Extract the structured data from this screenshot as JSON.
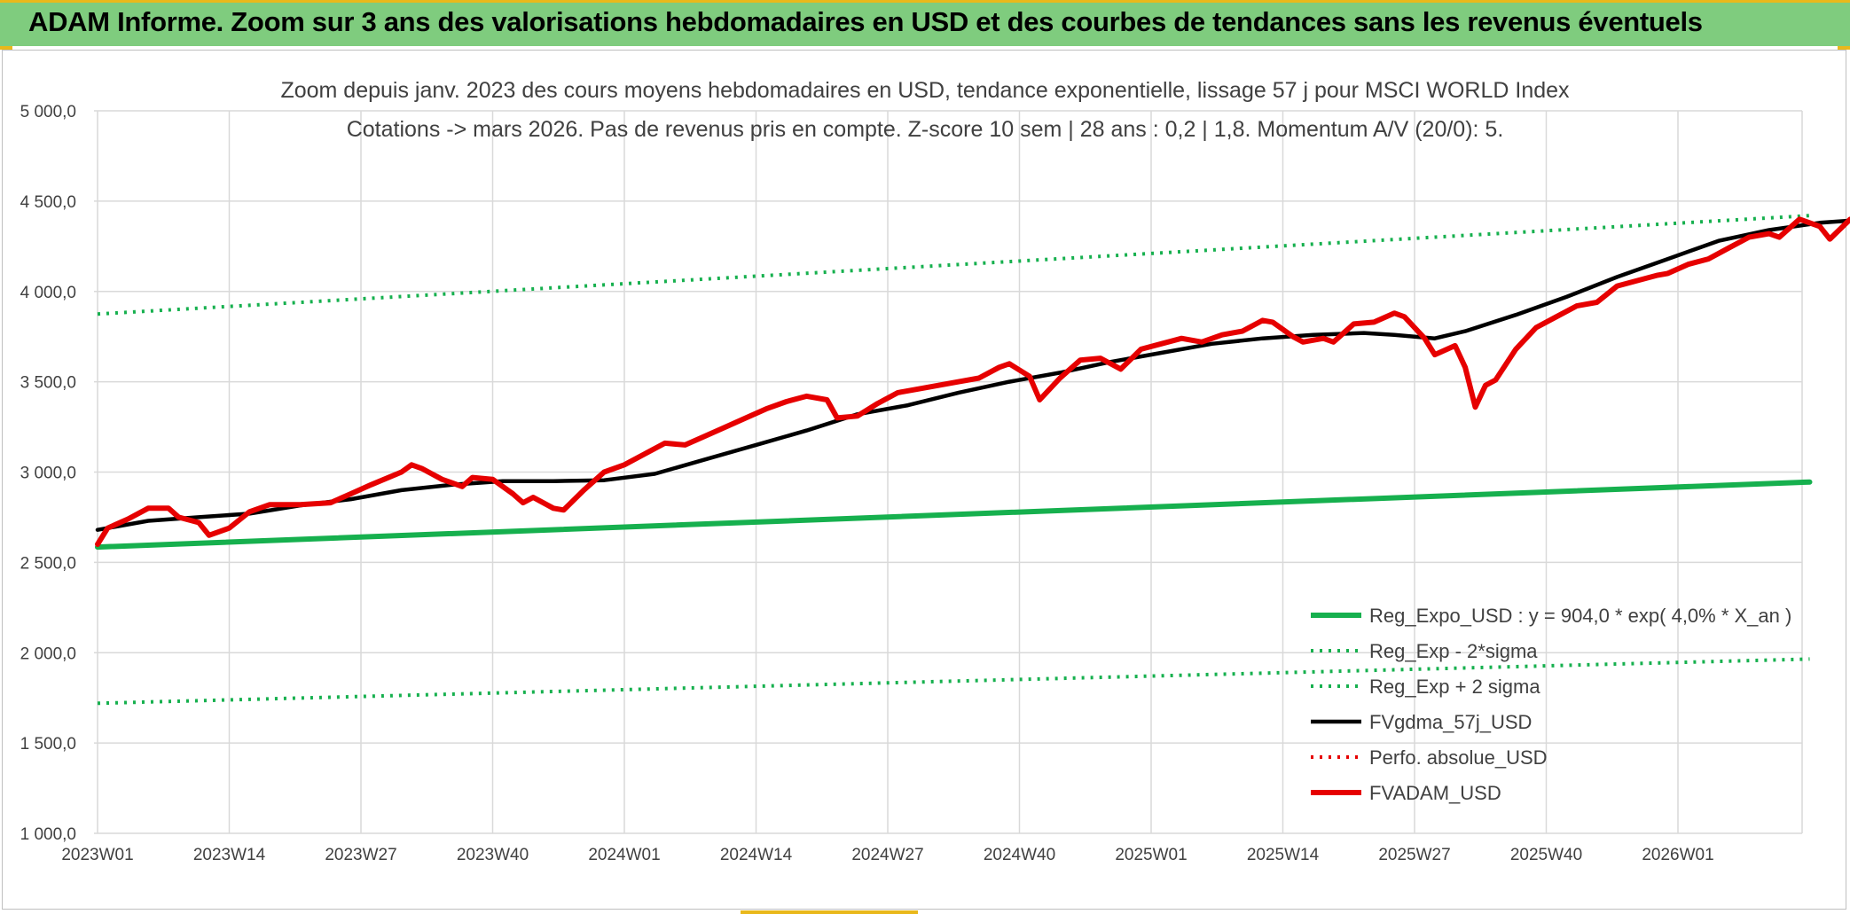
{
  "banner": {
    "title": "ADAM Informe. Zoom sur 3 ans des valorisations hebdomadaires en USD et des courbes de tendances sans les revenus éventuels"
  },
  "colors": {
    "banner_bg": "#7fcc7e",
    "accent_yellow": "#e9b81b",
    "trend_green": "#16b04e",
    "price_red": "#e60000",
    "ma_black": "#000000",
    "grid": "#d9d9d9",
    "text": "#404040"
  },
  "chart_data": {
    "type": "line",
    "title": "Zoom depuis janv. 2023 des cours moyens hebdomadaires en USD, tendance exponentielle, lissage 57 j pour MSCI WORLD Index",
    "subtitle": "Cotations -> mars 2026. Pas de revenus pris en compte. Z-score 10 sem | 28 ans : 0,2 | 1,8. Momentum A/V (20/0): 5.",
    "xlabel": "",
    "ylabel": "",
    "ylim": [
      1000,
      5000
    ],
    "y_ticks": [
      "1 000,0",
      "1 500,0",
      "2 000,0",
      "2 500,0",
      "3 000,0",
      "3 500,0",
      "4 000,0",
      "4 500,0",
      "5 000,0"
    ],
    "x_tick_labels": [
      "2023W01",
      "2023W14",
      "2023W27",
      "2023W40",
      "2024W01",
      "2024W14",
      "2024W27",
      "2024W40",
      "2025W01",
      "2025W14",
      "2025W27",
      "2025W40",
      "2026W01"
    ],
    "weeks_between_ticks": 13,
    "total_weeks": 170,
    "grid": true,
    "legend_position": "bottom-right",
    "series": [
      {
        "name": "Reg_Expo_USD : y = 904,0 * exp( 4,0% *  X_an )",
        "style": "solid-thick",
        "color": "#16b04e",
        "points": [
          [
            0,
            2585
          ],
          [
            169,
            2945
          ]
        ]
      },
      {
        "name": "Reg_Exp - 2*sigma",
        "style": "dotted",
        "color": "#16b04e",
        "points": [
          [
            0,
            1720
          ],
          [
            169,
            1965
          ]
        ]
      },
      {
        "name": "Reg_Exp + 2 sigma",
        "style": "dotted",
        "color": "#16b04e",
        "points": [
          [
            0,
            3875
          ],
          [
            169,
            4420
          ]
        ]
      },
      {
        "name": "FVgdma_57j_USD",
        "style": "solid",
        "color": "#000000",
        "points": [
          [
            0,
            2680
          ],
          [
            5,
            2730
          ],
          [
            10,
            2750
          ],
          [
            15,
            2770
          ],
          [
            20,
            2815
          ],
          [
            25,
            2850
          ],
          [
            30,
            2900
          ],
          [
            35,
            2930
          ],
          [
            40,
            2950
          ],
          [
            45,
            2950
          ],
          [
            50,
            2955
          ],
          [
            55,
            2990
          ],
          [
            60,
            3070
          ],
          [
            65,
            3150
          ],
          [
            70,
            3230
          ],
          [
            75,
            3320
          ],
          [
            80,
            3370
          ],
          [
            85,
            3440
          ],
          [
            90,
            3500
          ],
          [
            95,
            3550
          ],
          [
            100,
            3610
          ],
          [
            105,
            3660
          ],
          [
            110,
            3710
          ],
          [
            115,
            3740
          ],
          [
            120,
            3760
          ],
          [
            125,
            3770
          ],
          [
            128,
            3760
          ],
          [
            130,
            3750
          ],
          [
            132,
            3740
          ],
          [
            135,
            3780
          ],
          [
            140,
            3870
          ],
          [
            145,
            3970
          ],
          [
            150,
            4080
          ],
          [
            155,
            4180
          ],
          [
            160,
            4280
          ],
          [
            165,
            4340
          ],
          [
            170,
            4380
          ],
          [
            175,
            4400
          ],
          [
            178,
            4405
          ],
          [
            181,
            4380
          ],
          [
            184,
            4340
          ]
        ]
      },
      {
        "name": "Perfo. absolue_USD",
        "style": "dotted",
        "color": "#e60000",
        "points": []
      },
      {
        "name": "FVADAM_USD",
        "style": "solid-thick",
        "color": "#e60000",
        "points": [
          [
            0,
            2600
          ],
          [
            1,
            2690
          ],
          [
            3,
            2740
          ],
          [
            5,
            2800
          ],
          [
            7,
            2800
          ],
          [
            8,
            2750
          ],
          [
            10,
            2720
          ],
          [
            11,
            2650
          ],
          [
            13,
            2690
          ],
          [
            15,
            2780
          ],
          [
            17,
            2820
          ],
          [
            20,
            2820
          ],
          [
            23,
            2830
          ],
          [
            25,
            2880
          ],
          [
            27,
            2930
          ],
          [
            30,
            3000
          ],
          [
            31,
            3040
          ],
          [
            32,
            3020
          ],
          [
            34,
            2960
          ],
          [
            36,
            2920
          ],
          [
            37,
            2970
          ],
          [
            39,
            2960
          ],
          [
            41,
            2880
          ],
          [
            42,
            2830
          ],
          [
            43,
            2860
          ],
          [
            45,
            2800
          ],
          [
            46,
            2790
          ],
          [
            48,
            2900
          ],
          [
            50,
            3000
          ],
          [
            52,
            3040
          ],
          [
            54,
            3100
          ],
          [
            56,
            3160
          ],
          [
            58,
            3150
          ],
          [
            60,
            3200
          ],
          [
            62,
            3250
          ],
          [
            64,
            3300
          ],
          [
            66,
            3350
          ],
          [
            68,
            3390
          ],
          [
            70,
            3420
          ],
          [
            72,
            3400
          ],
          [
            73,
            3300
          ],
          [
            75,
            3310
          ],
          [
            77,
            3380
          ],
          [
            79,
            3440
          ],
          [
            81,
            3460
          ],
          [
            83,
            3480
          ],
          [
            85,
            3500
          ],
          [
            87,
            3520
          ],
          [
            89,
            3580
          ],
          [
            90,
            3600
          ],
          [
            92,
            3530
          ],
          [
            93,
            3400
          ],
          [
            95,
            3520
          ],
          [
            97,
            3620
          ],
          [
            99,
            3630
          ],
          [
            101,
            3570
          ],
          [
            103,
            3680
          ],
          [
            105,
            3710
          ],
          [
            107,
            3740
          ],
          [
            109,
            3720
          ],
          [
            111,
            3760
          ],
          [
            113,
            3780
          ],
          [
            115,
            3840
          ],
          [
            116,
            3830
          ],
          [
            118,
            3750
          ],
          [
            119,
            3720
          ],
          [
            121,
            3740
          ],
          [
            122,
            3720
          ],
          [
            124,
            3820
          ],
          [
            126,
            3830
          ],
          [
            128,
            3880
          ],
          [
            129,
            3860
          ],
          [
            131,
            3740
          ],
          [
            132,
            3650
          ],
          [
            134,
            3700
          ],
          [
            135,
            3580
          ],
          [
            136,
            3360
          ],
          [
            137,
            3480
          ],
          [
            138,
            3510
          ],
          [
            140,
            3680
          ],
          [
            142,
            3800
          ],
          [
            144,
            3860
          ],
          [
            146,
            3920
          ],
          [
            148,
            3940
          ],
          [
            150,
            4030
          ],
          [
            152,
            4060
          ],
          [
            154,
            4090
          ],
          [
            155,
            4100
          ],
          [
            157,
            4150
          ],
          [
            159,
            4180
          ],
          [
            161,
            4240
          ],
          [
            163,
            4300
          ],
          [
            165,
            4320
          ],
          [
            166,
            4300
          ],
          [
            168,
            4400
          ],
          [
            170,
            4360
          ],
          [
            171,
            4290
          ],
          [
            173,
            4400
          ],
          [
            175,
            4410
          ],
          [
            176,
            4390
          ],
          [
            178,
            4460
          ],
          [
            179,
            4450
          ],
          [
            181,
            4520
          ],
          [
            182,
            4500
          ],
          [
            183,
            4550
          ],
          [
            185,
            4530
          ],
          [
            186,
            4550
          ],
          [
            187,
            4480
          ],
          [
            188,
            4400
          ],
          [
            189,
            4320
          ],
          [
            190,
            4270
          ]
        ]
      }
    ]
  }
}
